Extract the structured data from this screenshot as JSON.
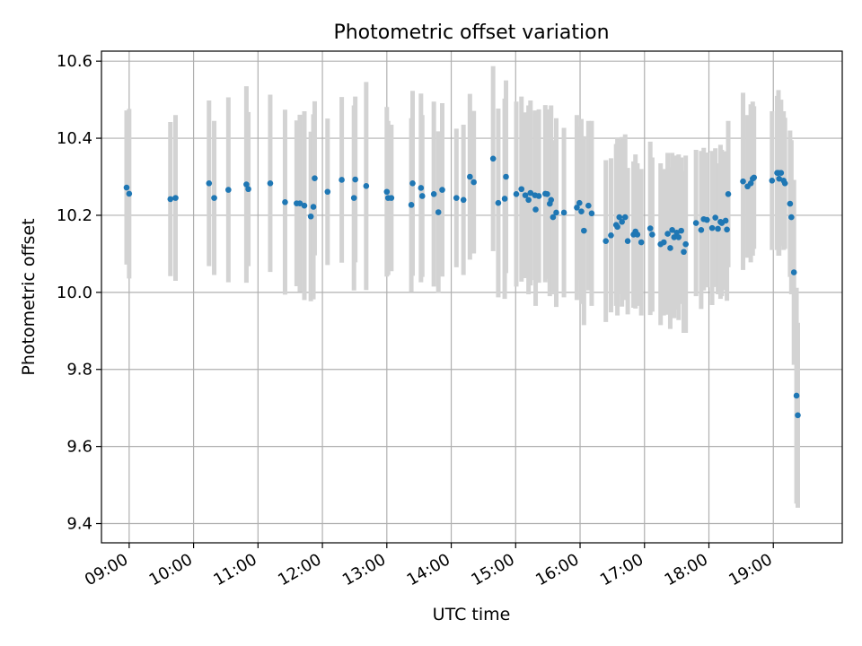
{
  "chart_data": {
    "type": "scatter",
    "title": "Photometric offset variation",
    "xlabel": "UTC time",
    "ylabel": "Photometric offset",
    "x_unit": "hours UTC",
    "xlim": [
      8.57,
      20.07
    ],
    "ylim": [
      9.35,
      10.626
    ],
    "grid": true,
    "x_ticks": [
      9,
      10,
      11,
      12,
      13,
      14,
      15,
      16,
      17,
      18,
      19
    ],
    "x_tick_labels": [
      "09:00",
      "10:00",
      "11:00",
      "12:00",
      "13:00",
      "14:00",
      "15:00",
      "16:00",
      "17:00",
      "18:00",
      "19:00"
    ],
    "y_ticks": [
      9.4,
      9.6,
      9.8,
      10.0,
      10.2,
      10.4,
      10.6
    ],
    "y_tick_labels": [
      "9.4",
      "9.6",
      "9.8",
      "10.0",
      "10.2",
      "10.4",
      "10.6"
    ],
    "colors": {
      "points": "#1f77b4",
      "errorbars": "#d3d3d3",
      "grid": "#b0b0b0"
    },
    "series": [
      {
        "x": [
          8.96,
          9.0,
          9.64,
          9.72,
          10.24,
          10.32,
          10.54,
          10.82,
          10.85,
          11.19,
          11.42,
          11.6,
          11.65,
          11.72,
          11.82,
          11.86,
          11.88,
          12.08,
          12.3,
          12.49,
          12.51,
          12.68,
          13.0,
          13.02,
          13.07,
          13.38,
          13.4,
          13.53,
          13.55,
          13.73,
          13.8,
          13.86,
          14.08,
          14.19,
          14.29,
          14.35,
          14.65,
          14.73,
          14.83,
          14.85,
          15.01,
          15.09,
          15.15,
          15.2,
          15.23,
          15.3,
          15.31,
          15.36,
          15.46,
          15.49,
          15.53,
          15.55,
          15.58,
          15.63,
          15.75,
          15.95,
          15.99,
          16.02,
          16.06,
          16.13,
          16.18,
          16.4,
          16.48,
          16.56,
          16.58,
          16.61,
          16.65,
          16.7,
          16.74,
          16.83,
          16.86,
          16.89,
          16.95,
          17.09,
          17.12,
          17.25,
          17.3,
          17.36,
          17.4,
          17.43,
          17.46,
          17.5,
          17.53,
          17.57,
          17.61,
          17.64,
          17.8,
          17.88,
          17.92,
          17.97,
          18.05,
          18.1,
          18.14,
          18.18,
          18.2,
          18.26,
          18.28,
          18.3,
          18.53,
          18.6,
          18.65,
          18.68,
          18.7,
          18.98,
          19.06,
          19.08,
          19.09,
          19.12,
          19.16,
          19.18,
          19.26,
          19.28,
          19.32,
          19.36,
          19.38
        ],
        "y": [
          10.272,
          10.256,
          10.242,
          10.245,
          10.283,
          10.245,
          10.266,
          10.28,
          10.268,
          10.283,
          10.234,
          10.231,
          10.231,
          10.225,
          10.197,
          10.222,
          10.296,
          10.261,
          10.292,
          10.245,
          10.293,
          10.276,
          10.261,
          10.245,
          10.245,
          10.227,
          10.283,
          10.271,
          10.25,
          10.255,
          10.208,
          10.266,
          10.245,
          10.24,
          10.3,
          10.286,
          10.347,
          10.232,
          10.243,
          10.3,
          10.255,
          10.268,
          10.252,
          10.24,
          10.258,
          10.252,
          10.215,
          10.25,
          10.256,
          10.255,
          10.23,
          10.24,
          10.195,
          10.207,
          10.207,
          10.22,
          10.232,
          10.21,
          10.16,
          10.225,
          10.205,
          10.133,
          10.148,
          10.175,
          10.17,
          10.195,
          10.183,
          10.195,
          10.133,
          10.15,
          10.158,
          10.15,
          10.13,
          10.166,
          10.15,
          10.125,
          10.13,
          10.152,
          10.115,
          10.162,
          10.143,
          10.155,
          10.143,
          10.16,
          10.105,
          10.125,
          10.18,
          10.162,
          10.19,
          10.188,
          10.167,
          10.194,
          10.165,
          10.183,
          10.18,
          10.186,
          10.163,
          10.255,
          10.288,
          10.275,
          10.283,
          10.295,
          10.298,
          10.29,
          10.31,
          10.31,
          10.295,
          10.31,
          10.29,
          10.283,
          10.23,
          10.195,
          10.052,
          9.732,
          9.681
        ],
        "err": [
          0.2,
          0.22,
          0.2,
          0.215,
          0.215,
          0.2,
          0.24,
          0.255,
          0.2,
          0.23,
          0.24,
          0.215,
          0.23,
          0.245,
          0.22,
          0.24,
          0.2,
          0.19,
          0.215,
          0.24,
          0.215,
          0.27,
          0.22,
          0.2,
          0.19,
          0.225,
          0.24,
          0.245,
          0.21,
          0.24,
          0.21,
          0.225,
          0.18,
          0.195,
          0.215,
          0.185,
          0.24,
          0.245,
          0.26,
          0.25,
          0.24,
          0.24,
          0.215,
          0.245,
          0.24,
          0.22,
          0.25,
          0.225,
          0.23,
          0.22,
          0.24,
          0.245,
          0.2,
          0.245,
          0.22,
          0.24,
          0.2,
          0.24,
          0.245,
          0.22,
          0.24,
          0.21,
          0.2,
          0.21,
          0.23,
          0.2,
          0.22,
          0.215,
          0.19,
          0.19,
          0.2,
          0.185,
          0.19,
          0.225,
          0.2,
          0.21,
          0.19,
          0.21,
          0.21,
          0.2,
          0.21,
          0.2,
          0.215,
          0.19,
          0.21,
          0.23,
          0.19,
          0.205,
          0.185,
          0.175,
          0.2,
          0.18,
          0.17,
          0.2,
          0.19,
          0.18,
          0.185,
          0.19,
          0.23,
          0.185,
          0.205,
          0.2,
          0.185,
          0.18,
          0.2,
          0.215,
          0.2,
          0.19,
          0.18,
          0.17,
          0.19,
          0.2,
          0.24,
          0.28,
          0.24
        ]
      }
    ]
  }
}
